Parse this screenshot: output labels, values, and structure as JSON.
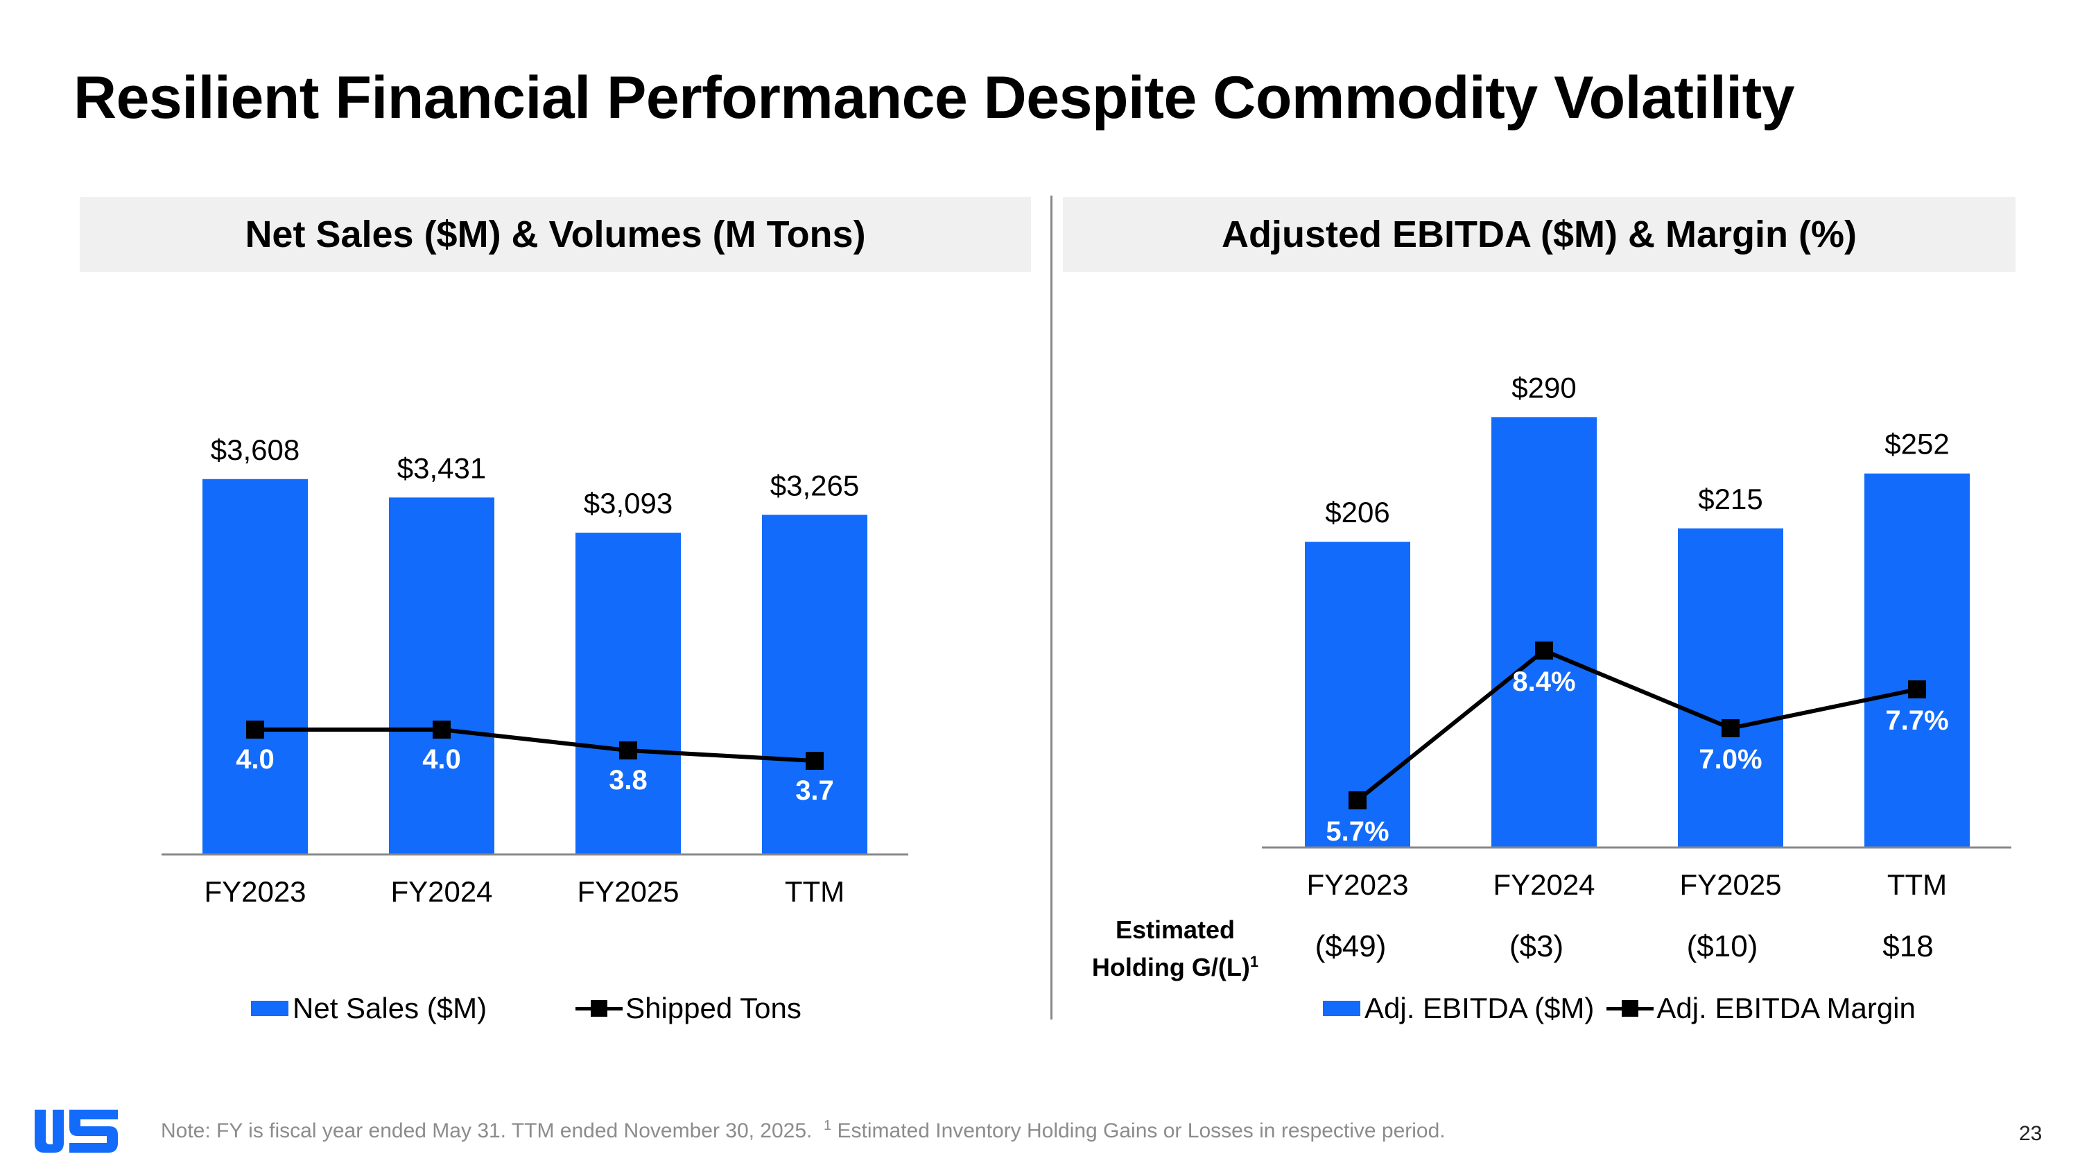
{
  "page": {
    "title": "Resilient Financial Performance Despite Commodity Volatility",
    "footnote_main": "Note: FY is fiscal year ended May 31. TTM ended November 30, 2025.",
    "footnote_sup": "1",
    "footnote_tail": "Estimated Inventory Holding Gains or Losses in respective period.",
    "page_number": "23"
  },
  "colors": {
    "bar": "#126bfa",
    "line": "#000000",
    "axis": "#888888",
    "header_bg": "#f0f0f0"
  },
  "chart_data": [
    {
      "type": "bar",
      "title": "Net Sales ($M) & Volumes (M Tons)",
      "categories": [
        "FY2023",
        "FY2024",
        "FY2025",
        "TTM"
      ],
      "series": [
        {
          "name": "Net Sales ($M)",
          "kind": "bar",
          "values": [
            3608,
            3431,
            3093,
            3265
          ],
          "labels": [
            "$3,608",
            "$3,431",
            "$3,093",
            "$3,265"
          ]
        },
        {
          "name": "Shipped Tons",
          "kind": "line",
          "values": [
            4.0,
            4.0,
            3.8,
            3.7
          ],
          "labels": [
            "4.0",
            "4.0",
            "3.8",
            "3.7"
          ]
        }
      ],
      "legend": [
        "Net Sales ($M)",
        "Shipped Tons"
      ]
    },
    {
      "type": "bar",
      "title": "Adjusted EBITDA ($M) & Margin (%)",
      "categories": [
        "FY2023",
        "FY2024",
        "FY2025",
        "TTM"
      ],
      "series": [
        {
          "name": "Adj. EBITDA ($M)",
          "kind": "bar",
          "values": [
            206,
            290,
            215,
            252
          ],
          "labels": [
            "$206",
            "$290",
            "$215",
            "$252"
          ]
        },
        {
          "name": "Adj. EBITDA Margin",
          "kind": "line",
          "values": [
            5.7,
            8.4,
            7.0,
            7.7
          ],
          "labels": [
            "5.7%",
            "8.4%",
            "7.0%",
            "7.7%"
          ]
        }
      ],
      "legend": [
        "Adj. EBITDA ($M)",
        "Adj. EBITDA Margin"
      ],
      "holding": {
        "label_line1": "Estimated",
        "label_line2": "Holding G/(L)",
        "label_sup": "1",
        "values": [
          "($49)",
          "($3)",
          "($10)",
          "$18"
        ]
      }
    }
  ]
}
